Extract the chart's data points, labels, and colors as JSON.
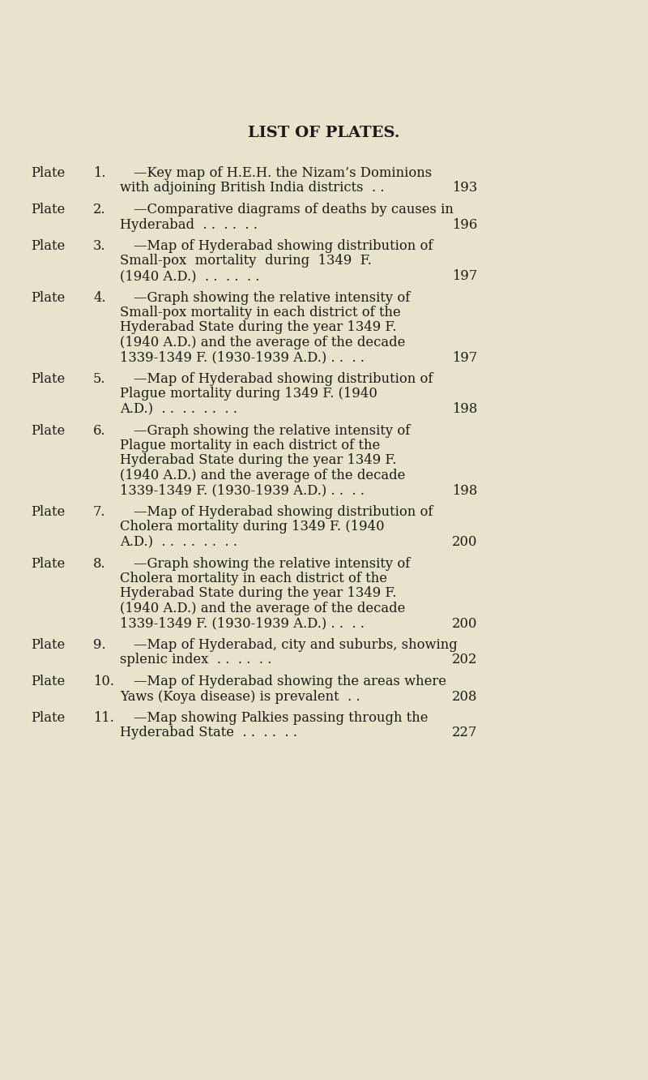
{
  "title": "LIST OF PLATES.",
  "background_color": "#e8e3cb",
  "text_color": "#1a1a1a",
  "title_fontsize": 14,
  "body_fontsize": 11.8,
  "font_family": "DejaVu Serif",
  "entries": [
    {
      "plate": "Plate",
      "num": "1.",
      "lines": [
        "—Key map of H.E.H. the Nizam’s Dominions",
        "with adjoining British India districts  . ."
      ],
      "page": "193"
    },
    {
      "plate": "Plate",
      "num": "2.",
      "lines": [
        "—Comparative diagrams of deaths by causes in",
        "Hyderabad  . .  . .  . ."
      ],
      "page": "196"
    },
    {
      "plate": "Plate",
      "num": "3.",
      "lines": [
        "—Map of Hyderabad showing distribution of",
        "Small-pox  mortality  during  1349  F.",
        "(1940 A.D.)  . .  . .  . ."
      ],
      "page": "197"
    },
    {
      "plate": "Plate",
      "num": "4.",
      "lines": [
        "—Graph showing the relative intensity of",
        "Small-pox mortality in each district of the",
        "Hyderabad State during the year 1349 F.",
        "(1940 A.D.) and the average of the decade",
        "1339-1349 F. (1930-1939 A.D.) . .  . ."
      ],
      "page": "197"
    },
    {
      "plate": "Plate",
      "num": "5.",
      "lines": [
        "—Map of Hyderabad showing distribution of",
        "Plague mortality during 1349 F. (1940",
        "A.D.)  . .  . .  . .  . ."
      ],
      "page": "198"
    },
    {
      "plate": "Plate",
      "num": "6.",
      "lines": [
        "—Graph showing the relative intensity of",
        "Plague mortality in each district of the",
        "Hyderabad State during the year 1349 F.",
        "(1940 A.D.) and the average of the decade",
        "1339-1349 F. (1930-1939 A.D.) . .  . ."
      ],
      "page": "198"
    },
    {
      "plate": "Plate",
      "num": "7.",
      "lines": [
        "—Map of Hyderabad showing distribution of",
        "Cholera mortality during 1349 F. (1940",
        "A.D.)  . .  . .  . .  . ."
      ],
      "page": "200"
    },
    {
      "plate": "Plate",
      "num": "8.",
      "lines": [
        "—Graph showing the relative intensity of",
        "Cholera mortality in each district of the",
        "Hyderabad State during the year 1349 F.",
        "(1940 A.D.) and the average of the decade",
        "1339-1349 F. (1930-1939 A.D.) . .  . ."
      ],
      "page": "200"
    },
    {
      "plate": "Plate",
      "num": "9.",
      "lines": [
        "—Map of Hyderabad, city and suburbs, showing",
        "splenic index  . .  . .  . ."
      ],
      "page": "202"
    },
    {
      "plate": "Plate",
      "num": "10.",
      "lines": [
        "—Map of Hyderabad showing the areas where",
        "Yaws (Koya disease) is prevalent  . ."
      ],
      "page": "208"
    },
    {
      "plate": "Plate",
      "num": "11.",
      "lines": [
        "—Map showing Palkies passing through the",
        "Hyderabad State  . .  . .  . ."
      ],
      "page": "227"
    }
  ]
}
